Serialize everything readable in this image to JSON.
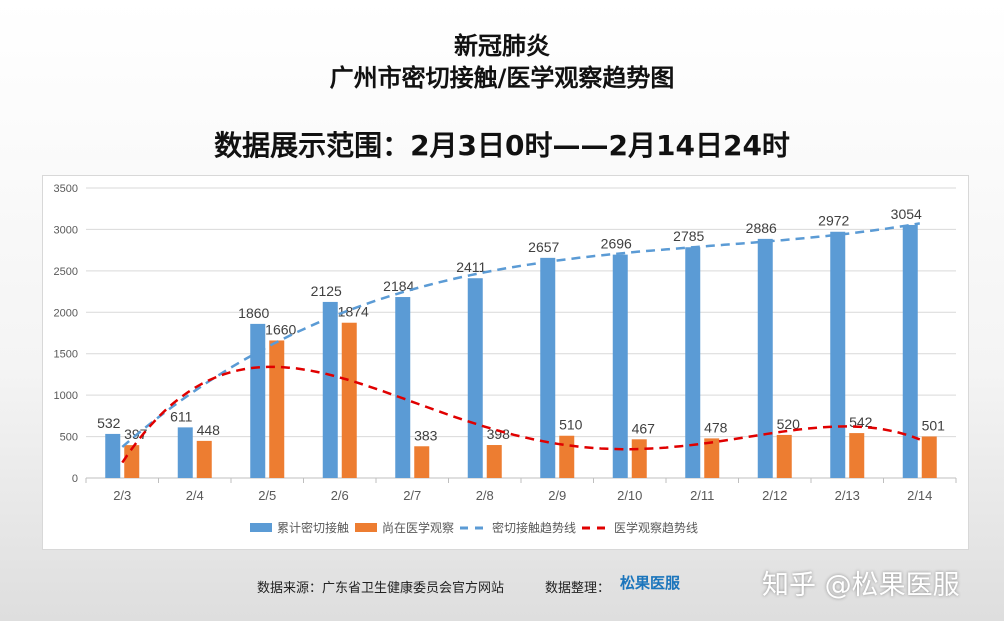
{
  "header": {
    "title1": "新冠肺炎",
    "title2": "广州市密切接触/医学观察趋势图",
    "range": "数据展示范围：2月3日0时——2月14日24时"
  },
  "chart_data": {
    "type": "bar",
    "categories": [
      "2/3",
      "2/4",
      "2/5",
      "2/6",
      "2/7",
      "2/8",
      "2/9",
      "2/10",
      "2/11",
      "2/12",
      "2/13",
      "2/14"
    ],
    "series": [
      {
        "name": "累计密切接触",
        "values": [
          532,
          611,
          1860,
          2125,
          2184,
          2411,
          2657,
          2696,
          2785,
          2886,
          2972,
          3054
        ],
        "color": "#5b9bd5"
      },
      {
        "name": "尚在医学观察",
        "values": [
          397,
          448,
          1660,
          1874,
          383,
          398,
          510,
          467,
          478,
          520,
          542,
          501
        ],
        "color": "#ed7d31"
      }
    ],
    "trendlines": [
      {
        "name": "密切接触趋势线",
        "of": "累计密切接触",
        "color": "#5b9bd5",
        "style": "dashed"
      },
      {
        "name": "医学观察趋势线",
        "of": "尚在医学观察",
        "color": "#e00000",
        "style": "dashed"
      }
    ],
    "ylim": [
      0,
      3500
    ],
    "yticks": [
      0,
      500,
      1000,
      1500,
      2000,
      2500,
      3000,
      3500
    ],
    "grid": true,
    "legend": "bottom"
  },
  "footer": {
    "source": "数据来源：广东省卫生健康委员会官方网站",
    "organizer": "数据整理：",
    "logo": "松果医服",
    "watermark": "知乎 @松果医服"
  }
}
